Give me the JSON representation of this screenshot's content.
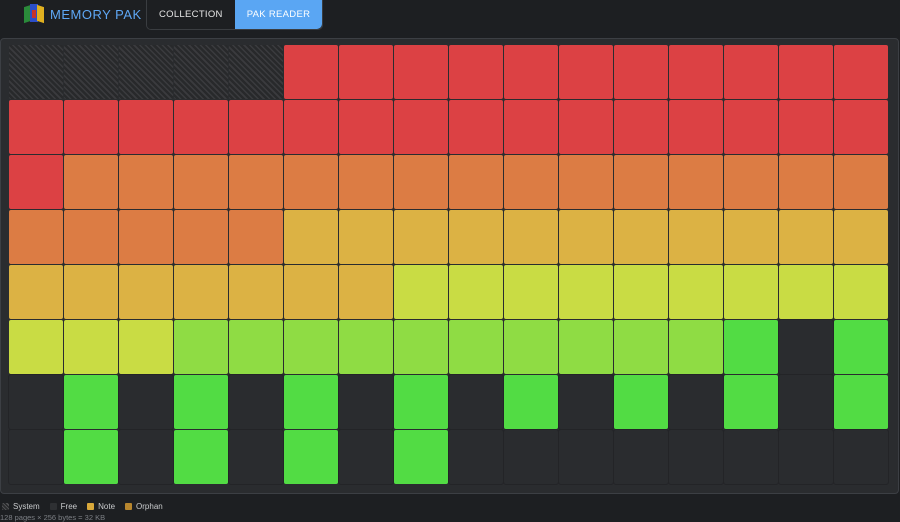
{
  "header": {
    "brand_title": "MEMORY PAK",
    "tabs": [
      {
        "label": "COLLECTION",
        "active": false
      },
      {
        "label": "PAK READER",
        "active": true
      }
    ]
  },
  "colors": {
    "accent": "#5aa6f3",
    "brand_text": "#5ea7f5",
    "free": "#2a2c2f",
    "note": "#d9a93b",
    "orphan": "#b7862e"
  },
  "pages": {
    "rows": [
      [
        "system",
        "system",
        "system",
        "system",
        "system",
        "#dc4144",
        "#dc4144",
        "#dc4144",
        "#dc4144",
        "#dc4144",
        "#dc4144",
        "#dc4144",
        "#dc4144",
        "#dc4144",
        "#dc4144",
        "#dc4144"
      ],
      [
        "#dc4144",
        "#dc4144",
        "#dc4144",
        "#dc4144",
        "#dc4144",
        "#dc4144",
        "#dc4144",
        "#dc4144",
        "#dc4144",
        "#dc4144",
        "#dc4144",
        "#dc4144",
        "#dc4144",
        "#dc4144",
        "#dc4144",
        "#dc4144"
      ],
      [
        "#dc4144",
        "#dc7c44",
        "#dc7c44",
        "#dc7c44",
        "#dc7c44",
        "#dc7c44",
        "#dc7c44",
        "#dc7c44",
        "#dc7c44",
        "#dc7c44",
        "#dc7c44",
        "#dc7c44",
        "#dc7c44",
        "#dc7c44",
        "#dc7c44",
        "#dc7c44"
      ],
      [
        "#dc7c44",
        "#dc7c44",
        "#dc7c44",
        "#dc7c44",
        "#dc7c44",
        "#dcb244",
        "#dcb244",
        "#dcb244",
        "#dcb244",
        "#dcb244",
        "#dcb244",
        "#dcb244",
        "#dcb244",
        "#dcb244",
        "#dcb244",
        "#dcb244"
      ],
      [
        "#dcb244",
        "#dcb244",
        "#dcb244",
        "#dcb244",
        "#dcb244",
        "#dcb244",
        "#dcb244",
        "#c9dc44",
        "#c9dc44",
        "#c9dc44",
        "#c9dc44",
        "#c9dc44",
        "#c9dc44",
        "#c9dc44",
        "#c9dc44",
        "#c9dc44"
      ],
      [
        "#c9dc44",
        "#c9dc44",
        "#c9dc44",
        "#8fdc44",
        "#8fdc44",
        "#8fdc44",
        "#8fdc44",
        "#8fdc44",
        "#8fdc44",
        "#8fdc44",
        "#8fdc44",
        "#8fdc44",
        "#8fdc44",
        "#52dc44",
        "free",
        "#52dc44"
      ],
      [
        "free",
        "#52dc44",
        "free",
        "#52dc44",
        "free",
        "#52dc44",
        "free",
        "#52dc44",
        "free",
        "#52dc44",
        "free",
        "#52dc44",
        "free",
        "#52dc44",
        "free",
        "#52dc44"
      ],
      [
        "free",
        "#52dc44",
        "free",
        "#52dc44",
        "free",
        "#52dc44",
        "free",
        "#52dc44",
        "free",
        "free",
        "free",
        "free",
        "free",
        "free",
        "free",
        "free"
      ]
    ]
  },
  "legend": [
    {
      "label": "System",
      "type": "system"
    },
    {
      "label": "Free",
      "type": "free"
    },
    {
      "label": "Note",
      "type": "note"
    },
    {
      "label": "Orphan",
      "type": "orphan"
    }
  ],
  "footer": {
    "summary": "128 pages × 256 bytes = 32 KB"
  }
}
